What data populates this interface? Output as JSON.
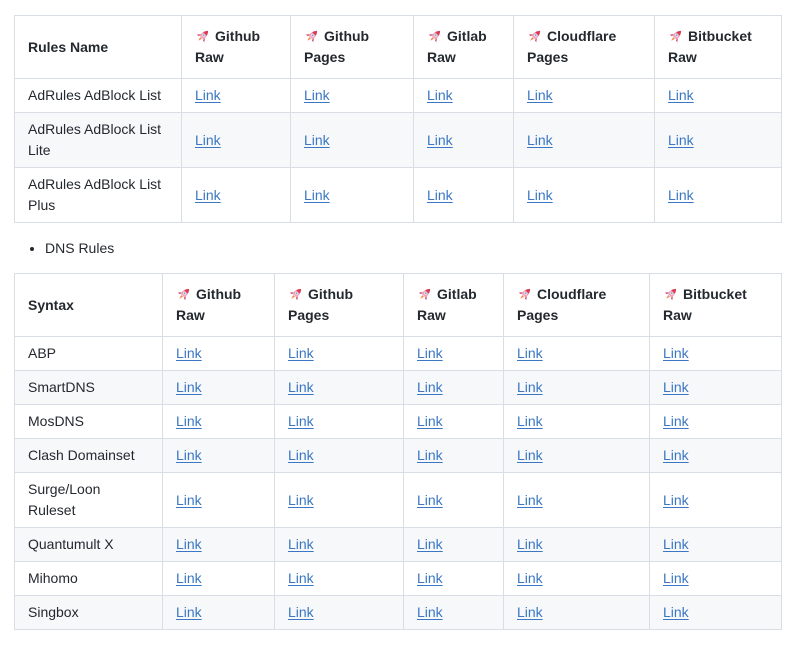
{
  "colors": {
    "text": "#24292f",
    "link": "#3b77c3",
    "table_border": "#d8dee4",
    "alt_row_background": "#f6f8fa",
    "page_background": "#ffffff"
  },
  "link_label": "Link",
  "sections": [
    {
      "type": "table",
      "name": "rules-table",
      "columns": [
        {
          "label": "Rules Name",
          "icon": null
        },
        {
          "label": "Github Raw",
          "icon": "rocket"
        },
        {
          "label": "Github Pages",
          "icon": "rocket"
        },
        {
          "label": "Gitlab Raw",
          "icon": "rocket"
        },
        {
          "label": "Cloudflare Pages",
          "icon": "rocket"
        },
        {
          "label": "Bitbucket Raw",
          "icon": "rocket"
        }
      ],
      "rows": [
        {
          "label": "AdRules AdBlock List",
          "links": [
            "Link",
            "Link",
            "Link",
            "Link",
            "Link"
          ]
        },
        {
          "label": "AdRules AdBlock List Lite",
          "links": [
            "Link",
            "Link",
            "Link",
            "Link",
            "Link"
          ]
        },
        {
          "label": "AdRules AdBlock List Plus",
          "links": [
            "Link",
            "Link",
            "Link",
            "Link",
            "Link"
          ]
        }
      ]
    },
    {
      "type": "list",
      "name": "dns-rules-list",
      "items": [
        {
          "label": "DNS Rules"
        }
      ]
    },
    {
      "type": "table",
      "name": "dns-table",
      "columns": [
        {
          "label": "Syntax",
          "icon": null
        },
        {
          "label": "Github Raw",
          "icon": "rocket"
        },
        {
          "label": "Github Pages",
          "icon": "rocket"
        },
        {
          "label": "Gitlab Raw",
          "icon": "rocket"
        },
        {
          "label": "Cloudflare Pages",
          "icon": "rocket"
        },
        {
          "label": "Bitbucket Raw",
          "icon": "rocket"
        }
      ],
      "rows": [
        {
          "label": "ABP",
          "links": [
            "Link",
            "Link",
            "Link",
            "Link",
            "Link"
          ]
        },
        {
          "label": "SmartDNS",
          "links": [
            "Link",
            "Link",
            "Link",
            "Link",
            "Link"
          ]
        },
        {
          "label": "MosDNS",
          "links": [
            "Link",
            "Link",
            "Link",
            "Link",
            "Link"
          ]
        },
        {
          "label": "Clash Domainset",
          "links": [
            "Link",
            "Link",
            "Link",
            "Link",
            "Link"
          ]
        },
        {
          "label": "Surge/Loon Ruleset",
          "links": [
            "Link",
            "Link",
            "Link",
            "Link",
            "Link"
          ]
        },
        {
          "label": "Quantumult X",
          "links": [
            "Link",
            "Link",
            "Link",
            "Link",
            "Link"
          ]
        },
        {
          "label": "Mihomo",
          "links": [
            "Link",
            "Link",
            "Link",
            "Link",
            "Link"
          ]
        },
        {
          "label": "Singbox",
          "links": [
            "Link",
            "Link",
            "Link",
            "Link",
            "Link"
          ]
        }
      ]
    }
  ]
}
